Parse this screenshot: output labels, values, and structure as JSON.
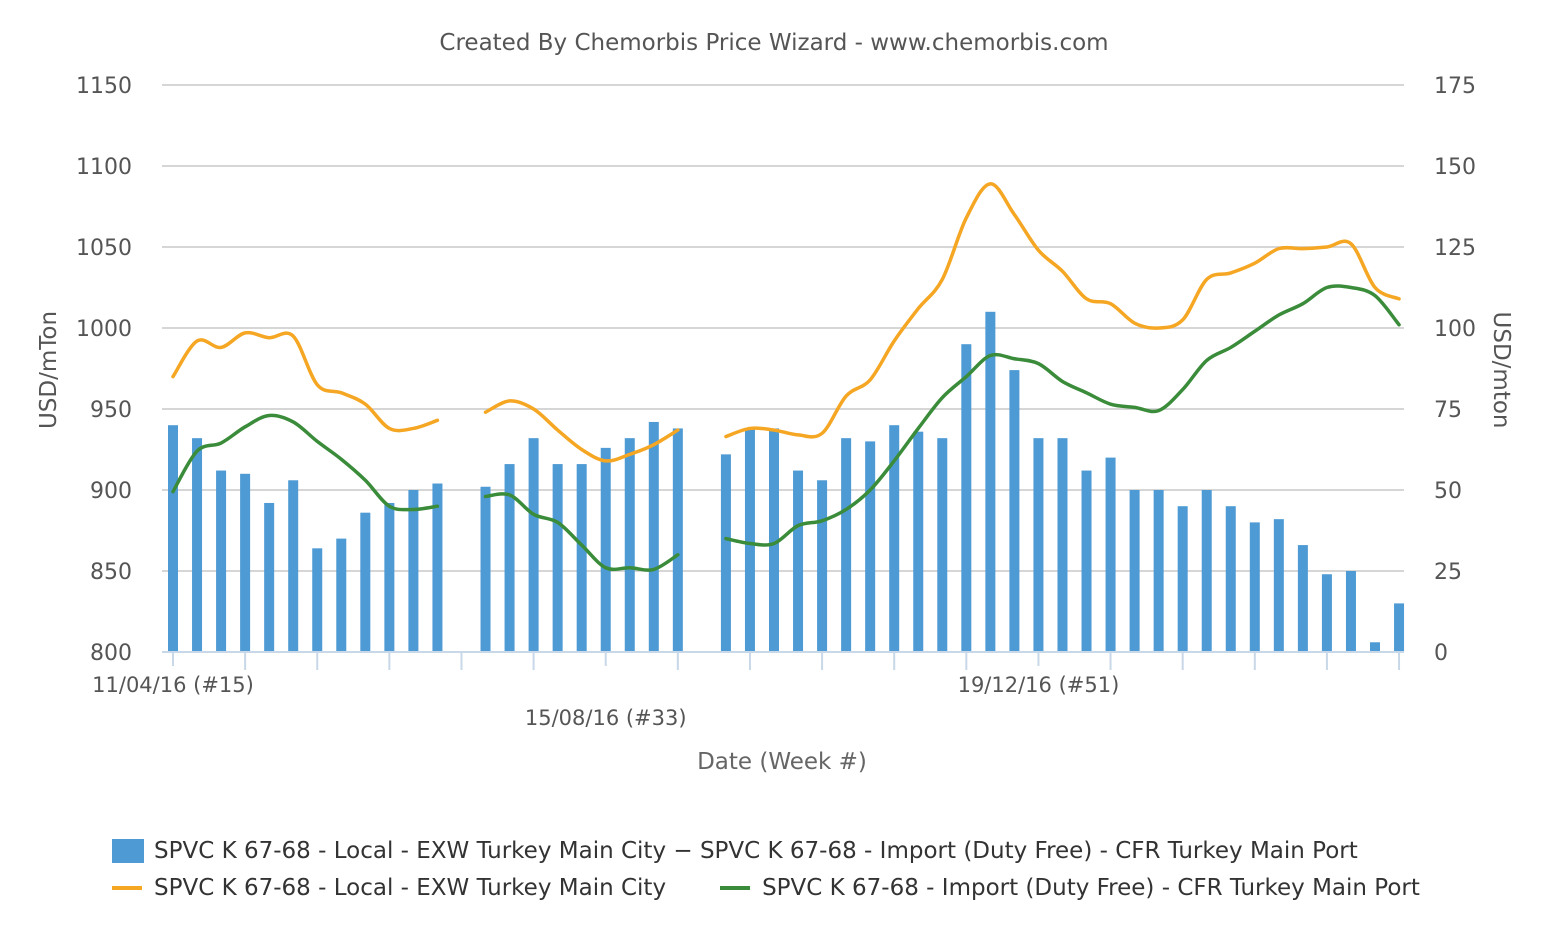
{
  "chart_data": {
    "type": "bar+line",
    "title": "Created By Chemorbis Price Wizard - www.chemorbis.com",
    "xlabel": "Date (Week #)",
    "ylabel_left": "USD/mTon",
    "ylabel_right": "USD/mton",
    "ylim_left": [
      800,
      1150
    ],
    "ylim_right": [
      0,
      175
    ],
    "yticks_left": [
      800,
      850,
      900,
      950,
      1000,
      1050,
      1100,
      1150
    ],
    "yticks_right": [
      0,
      25,
      50,
      75,
      100,
      125,
      150,
      175
    ],
    "x_labels": [
      {
        "index": 0,
        "label": "11/04/16 (#15)"
      },
      {
        "index": 18,
        "label": "15/08/16 (#33)"
      },
      {
        "index": 36,
        "label": "19/12/16 (#51)"
      }
    ],
    "weeks": 51,
    "grid": true,
    "legend_position": "bottom",
    "series": [
      {
        "name": "SPVC K 67-68 - Local - EXW Turkey Main City − SPVC K 67-68 - Import (Duty Free) - CFR Turkey Main Port",
        "kind": "bar",
        "axis": "right",
        "color": "#4e9ad4",
        "values": [
          70,
          66,
          56,
          55,
          46,
          53,
          32,
          35,
          43,
          46,
          50,
          52,
          null,
          51,
          58,
          66,
          58,
          58,
          63,
          66,
          71,
          69,
          null,
          61,
          69,
          69,
          56,
          53,
          66,
          65,
          70,
          68,
          66,
          95,
          105,
          87,
          66,
          66,
          56,
          60,
          50,
          50,
          45,
          50,
          45,
          40,
          41,
          33,
          24,
          25,
          3,
          15
        ]
      },
      {
        "name": "SPVC K 67-68 - Local - EXW Turkey Main City",
        "kind": "line",
        "axis": "left",
        "color": "#f5a623",
        "values": [
          970,
          992,
          988,
          997,
          994,
          995,
          965,
          960,
          953,
          938,
          938,
          943,
          null,
          948,
          955,
          950,
          937,
          925,
          918,
          922,
          928,
          937,
          null,
          933,
          938,
          937,
          934,
          935,
          958,
          968,
          992,
          1012,
          1030,
          1068,
          1089,
          1070,
          1048,
          1035,
          1018,
          1015,
          1003,
          1000,
          1005,
          1030,
          1034,
          1040,
          1049,
          1049,
          1050,
          1052,
          1025,
          1018
        ]
      },
      {
        "name": "SPVC K 67-68 - Import (Duty Free) - CFR Turkey Main Port",
        "kind": "line",
        "axis": "left",
        "color": "#3a8c3a",
        "values": [
          899,
          924,
          929,
          939,
          946,
          942,
          930,
          919,
          906,
          890,
          888,
          890,
          null,
          896,
          897,
          885,
          880,
          866,
          852,
          852,
          851,
          860,
          null,
          870,
          867,
          867,
          878,
          881,
          888,
          900,
          918,
          938,
          957,
          970,
          983,
          981,
          978,
          967,
          960,
          953,
          951,
          949,
          962,
          980,
          988,
          998,
          1008,
          1015,
          1025,
          1025,
          1020,
          1002
        ]
      }
    ]
  }
}
